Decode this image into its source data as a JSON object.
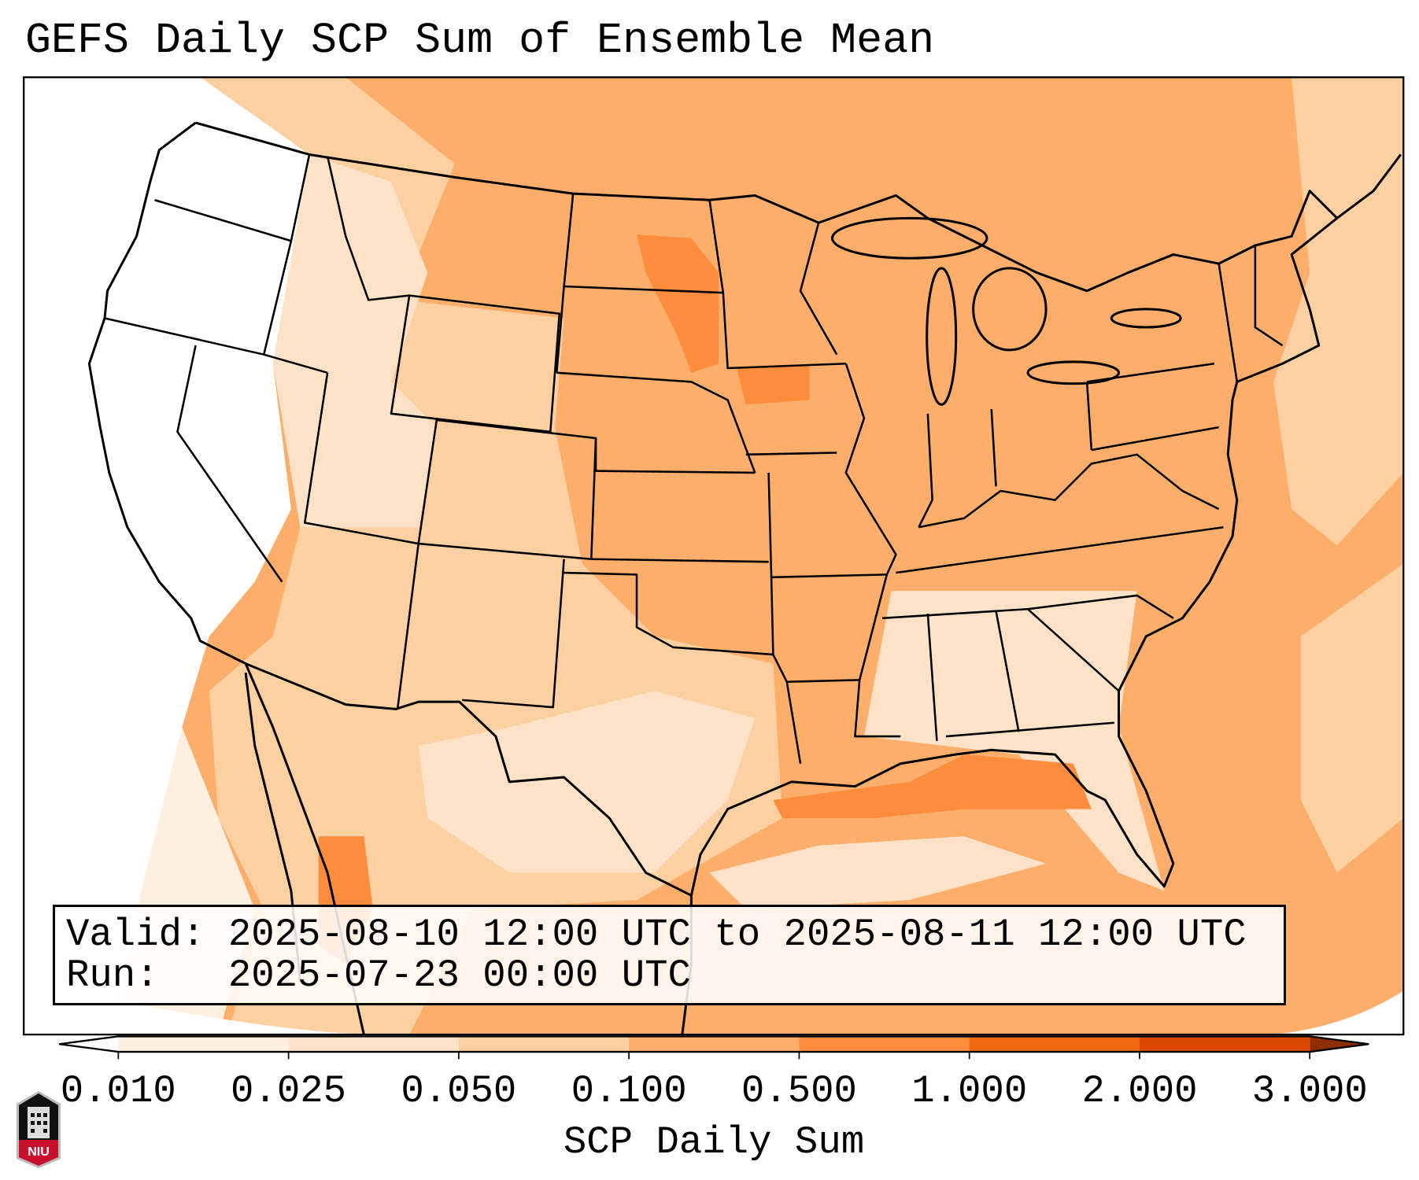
{
  "chart_data": {
    "type": "heatmap",
    "title": "GEFS Daily SCP Sum of Ensemble Mean",
    "colorbar": {
      "label": "SCP Daily Sum",
      "ticks": [
        "0.010",
        "0.025",
        "0.050",
        "0.100",
        "0.500",
        "1.000",
        "2.000",
        "3.000"
      ],
      "bin_colors": [
        "#fef0e1",
        "#fde2c7",
        "#fdd0a2",
        "#fdae6b",
        "#fd8d3c",
        "#f16913",
        "#d94801"
      ],
      "under_color": "#ffffff",
      "over_color": "#8c2d04",
      "extend": "both"
    },
    "field_summary": {
      "region": "Contiguous United States and surroundings",
      "typical_value_range": [
        0.01,
        0.5
      ]
    }
  },
  "info_box": {
    "valid_line": "Valid: 2025-08-10 12:00 UTC to 2025-08-11 12:00 UTC",
    "run_line": "Run:   2025-07-23 00:00 UTC"
  },
  "logo": {
    "text": "NIU"
  }
}
